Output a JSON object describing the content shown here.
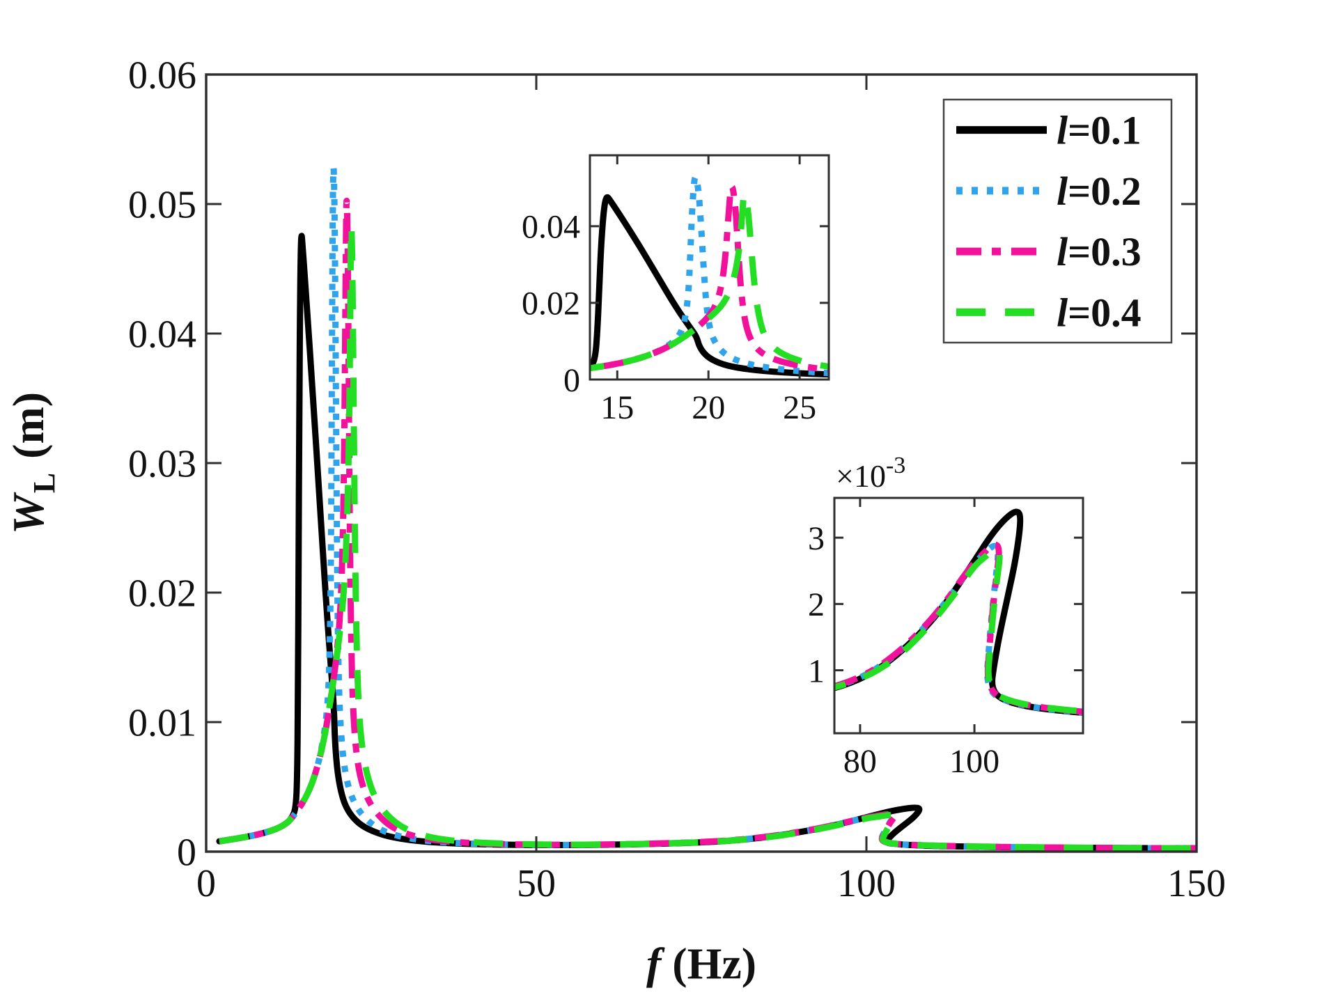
{
  "figure": {
    "background": "#ffffff",
    "axes_color": "#2f2f2f"
  },
  "labels": {
    "xlabel": {
      "sym": "f",
      "unit": " (Hz)"
    },
    "ylabel": {
      "sym": "W",
      "sub": "L",
      "unit": " (m)"
    }
  },
  "chart_data": {
    "type": "line",
    "title": "",
    "xlabel": "f (Hz)",
    "ylabel": "W_L (m)",
    "xlim": [
      0,
      150
    ],
    "ylim": [
      0,
      0.06
    ],
    "grid": false,
    "legend_position": "top-right",
    "x_ticks": [
      {
        "v": 0,
        "label": "0"
      },
      {
        "v": 50,
        "label": "50"
      },
      {
        "v": 100,
        "label": "100"
      },
      {
        "v": 150,
        "label": "150"
      }
    ],
    "y_ticks": [
      {
        "v": 0,
        "label": "0"
      },
      {
        "v": 0.01,
        "label": "0.01"
      },
      {
        "v": 0.02,
        "label": "0.02"
      },
      {
        "v": 0.03,
        "label": "0.03"
      },
      {
        "v": 0.04,
        "label": "0.04"
      },
      {
        "v": 0.05,
        "label": "0.05"
      },
      {
        "v": 0.06,
        "label": "0.06"
      }
    ],
    "series": [
      {
        "name": "l=0.1",
        "color": "#000000",
        "linestyle": "solid",
        "peak1": {
          "f": 14.4,
          "W": 0.048
        },
        "peak2": {
          "f": 107.5,
          "W": 0.0034
        },
        "points": [
          [
            2,
            0.0008
          ],
          [
            6,
            0.0011
          ],
          [
            10,
            0.0016
          ],
          [
            12,
            0.0021
          ],
          [
            13,
            0.0026
          ],
          [
            13.6,
            0.0034
          ],
          [
            13.8,
            0.006
          ],
          [
            13.9,
            0.012
          ],
          [
            14.0,
            0.022
          ],
          [
            14.1,
            0.034
          ],
          [
            14.25,
            0.044
          ],
          [
            14.4,
            0.048
          ],
          [
            14.6,
            0.0468
          ],
          [
            15.2,
            0.0425
          ],
          [
            16.2,
            0.035
          ],
          [
            17.2,
            0.027
          ],
          [
            18.2,
            0.019
          ],
          [
            19.0,
            0.0135
          ],
          [
            19.35,
            0.0112
          ],
          [
            19.5,
            0.0085
          ],
          [
            19.9,
            0.006
          ],
          [
            20.6,
            0.0042
          ],
          [
            21.5,
            0.0031
          ],
          [
            23,
            0.0022
          ],
          [
            25,
            0.0016
          ],
          [
            28,
            0.0011
          ],
          [
            33,
            0.00075
          ],
          [
            40,
            0.00058
          ],
          [
            50,
            0.0005
          ],
          [
            60,
            0.00052
          ],
          [
            70,
            0.00062
          ],
          [
            78,
            0.00078
          ],
          [
            84,
            0.00105
          ],
          [
            90,
            0.0015
          ],
          [
            95,
            0.002
          ],
          [
            100,
            0.00265
          ],
          [
            103,
            0.00305
          ],
          [
            105.5,
            0.0033
          ],
          [
            107.5,
            0.00342
          ],
          [
            108.2,
            0.0033
          ],
          [
            107.3,
            0.0027
          ],
          [
            105.8,
            0.0021
          ],
          [
            104.3,
            0.0015
          ],
          [
            103.3,
            0.001
          ],
          [
            103.0,
            0.00078
          ],
          [
            103.8,
            0.00062
          ],
          [
            106,
            0.00052
          ],
          [
            110,
            0.00044
          ],
          [
            116,
            0.00038
          ],
          [
            125,
            0.00032
          ],
          [
            137,
            0.00028
          ],
          [
            150,
            0.00026
          ]
        ]
      },
      {
        "name": "l=0.2",
        "color": "#2FA3EC",
        "linestyle": "dotted",
        "peak1": {
          "f": 19.25,
          "W": 0.0543
        },
        "peak2": {
          "f": 103.5,
          "W": 0.0029
        },
        "points": [
          [
            2,
            0.0008
          ],
          [
            6,
            0.0011
          ],
          [
            10,
            0.0016
          ],
          [
            12,
            0.0021
          ],
          [
            13,
            0.0026
          ],
          [
            14,
            0.0033
          ],
          [
            15,
            0.0041
          ],
          [
            16,
            0.0052
          ],
          [
            17,
            0.0068
          ],
          [
            17.8,
            0.0088
          ],
          [
            18.4,
            0.0112
          ],
          [
            18.7,
            0.015
          ],
          [
            18.9,
            0.022
          ],
          [
            19.0,
            0.032
          ],
          [
            19.1,
            0.044
          ],
          [
            19.25,
            0.0543
          ],
          [
            19.45,
            0.05
          ],
          [
            19.6,
            0.04
          ],
          [
            19.75,
            0.028
          ],
          [
            19.9,
            0.0185
          ],
          [
            20.1,
            0.0125
          ],
          [
            20.45,
            0.0088
          ],
          [
            21,
            0.0062
          ],
          [
            21.8,
            0.0045
          ],
          [
            23,
            0.0032
          ],
          [
            25,
            0.0021
          ],
          [
            28,
            0.0013
          ],
          [
            33,
            0.00082
          ],
          [
            40,
            0.0006
          ],
          [
            50,
            0.00051
          ],
          [
            60,
            0.00053
          ],
          [
            70,
            0.00063
          ],
          [
            78,
            0.0008
          ],
          [
            84,
            0.00107
          ],
          [
            90,
            0.00152
          ],
          [
            95,
            0.00202
          ],
          [
            99,
            0.00252
          ],
          [
            101.5,
            0.00275
          ],
          [
            103.5,
            0.0029
          ],
          [
            104.3,
            0.00282
          ],
          [
            103.6,
            0.0023
          ],
          [
            102.9,
            0.00172
          ],
          [
            102.4,
            0.00118
          ],
          [
            102.15,
            0.00088
          ],
          [
            103,
            0.00066
          ],
          [
            105,
            0.00055
          ],
          [
            109,
            0.00046
          ],
          [
            115,
            0.00039
          ],
          [
            124,
            0.00033
          ],
          [
            136,
            0.00028
          ],
          [
            150,
            0.00026
          ]
        ]
      },
      {
        "name": "l=0.3",
        "color": "#F2119B",
        "linestyle": "dashdot",
        "peak1": {
          "f": 21.25,
          "W": 0.0518
        },
        "peak2": {
          "f": 103.5,
          "W": 0.00292
        },
        "points": [
          [
            2,
            0.0008
          ],
          [
            6,
            0.0011
          ],
          [
            10,
            0.0016
          ],
          [
            12,
            0.0021
          ],
          [
            13,
            0.0026
          ],
          [
            14,
            0.0033
          ],
          [
            15,
            0.0041
          ],
          [
            16,
            0.0052
          ],
          [
            17,
            0.0068
          ],
          [
            18,
            0.009
          ],
          [
            19,
            0.0122
          ],
          [
            19.8,
            0.0152
          ],
          [
            20.4,
            0.019
          ],
          [
            20.75,
            0.025
          ],
          [
            20.95,
            0.033
          ],
          [
            21.1,
            0.043
          ],
          [
            21.25,
            0.0518
          ],
          [
            21.45,
            0.047
          ],
          [
            21.6,
            0.036
          ],
          [
            21.75,
            0.025
          ],
          [
            21.95,
            0.0165
          ],
          [
            22.2,
            0.0115
          ],
          [
            22.6,
            0.0082
          ],
          [
            23.2,
            0.006
          ],
          [
            24.2,
            0.0043
          ],
          [
            25.8,
            0.0029
          ],
          [
            28.5,
            0.0017
          ],
          [
            33,
            0.00095
          ],
          [
            40,
            0.00064
          ],
          [
            50,
            0.00052
          ],
          [
            60,
            0.00054
          ],
          [
            70,
            0.00064
          ],
          [
            78,
            0.00081
          ],
          [
            84,
            0.00108
          ],
          [
            90,
            0.00153
          ],
          [
            95,
            0.00203
          ],
          [
            99,
            0.00253
          ],
          [
            101.5,
            0.00276
          ],
          [
            103.5,
            0.00292
          ],
          [
            104.5,
            0.00284
          ],
          [
            103.7,
            0.00232
          ],
          [
            103.0,
            0.00174
          ],
          [
            102.5,
            0.0012
          ],
          [
            102.25,
            0.0009
          ],
          [
            103.1,
            0.00067
          ],
          [
            105.2,
            0.00056
          ],
          [
            109.2,
            0.00047
          ],
          [
            115.5,
            0.0004
          ],
          [
            125,
            0.00033
          ],
          [
            137,
            0.00028
          ],
          [
            150,
            0.00026
          ]
        ]
      },
      {
        "name": "l=0.4",
        "color": "#24DE24",
        "linestyle": "dashed",
        "peak1": {
          "f": 21.95,
          "W": 0.0495
        },
        "peak2": {
          "f": 103.8,
          "W": 0.00286
        },
        "points": [
          [
            2,
            0.0008
          ],
          [
            6,
            0.0011
          ],
          [
            10,
            0.0016
          ],
          [
            12,
            0.0021
          ],
          [
            13,
            0.0026
          ],
          [
            14,
            0.0033
          ],
          [
            15,
            0.0041
          ],
          [
            16,
            0.0052
          ],
          [
            17,
            0.0068
          ],
          [
            18,
            0.009
          ],
          [
            19,
            0.0122
          ],
          [
            20,
            0.0158
          ],
          [
            20.9,
            0.02
          ],
          [
            21.4,
            0.026
          ],
          [
            21.7,
            0.034
          ],
          [
            21.85,
            0.043
          ],
          [
            21.95,
            0.0495
          ],
          [
            22.15,
            0.0455
          ],
          [
            22.35,
            0.034
          ],
          [
            22.55,
            0.023
          ],
          [
            22.8,
            0.0155
          ],
          [
            23.1,
            0.011
          ],
          [
            23.6,
            0.008
          ],
          [
            24.4,
            0.0058
          ],
          [
            25.6,
            0.0041
          ],
          [
            27.5,
            0.0027
          ],
          [
            30.5,
            0.0016
          ],
          [
            35,
            0.00095
          ],
          [
            42,
            0.00065
          ],
          [
            52,
            0.00053
          ],
          [
            62,
            0.00055
          ],
          [
            72,
            0.00066
          ],
          [
            80,
            0.00085
          ],
          [
            86,
            0.00115
          ],
          [
            92,
            0.00165
          ],
          [
            97,
            0.0022
          ],
          [
            100,
            0.00258
          ],
          [
            102,
            0.00272
          ],
          [
            103.8,
            0.00286
          ],
          [
            104.6,
            0.00278
          ],
          [
            103.8,
            0.00228
          ],
          [
            103.1,
            0.0017
          ],
          [
            102.6,
            0.00118
          ],
          [
            102.35,
            0.0009
          ],
          [
            103.2,
            0.00067
          ],
          [
            105.4,
            0.00056
          ],
          [
            109.5,
            0.00047
          ],
          [
            116,
            0.0004
          ],
          [
            126,
            0.00033
          ],
          [
            138,
            0.00028
          ],
          [
            150,
            0.00025
          ]
        ]
      }
    ],
    "insets": [
      {
        "name": "inset-first-resonance",
        "xlim": [
          13.5,
          26.6
        ],
        "ylim": [
          0,
          0.0585
        ],
        "x_ticks": [
          {
            "v": 15,
            "label": "15"
          },
          {
            "v": 20,
            "label": "20"
          },
          {
            "v": 25,
            "label": "25"
          }
        ],
        "y_ticks": [
          {
            "v": 0,
            "label": "0"
          },
          {
            "v": 0.02,
            "label": "0.02"
          },
          {
            "v": 0.04,
            "label": "0.04"
          }
        ],
        "mult_base": "",
        "mult_exp": ""
      },
      {
        "name": "inset-second-resonance",
        "xlim": [
          75.5,
          119
        ],
        "ylim": [
          5e-05,
          0.0036
        ],
        "x_ticks": [
          {
            "v": 80,
            "label": "80"
          },
          {
            "v": 100,
            "label": "100"
          }
        ],
        "y_ticks": [
          {
            "v": 0.001,
            "label": "1"
          },
          {
            "v": 0.002,
            "label": "2"
          },
          {
            "v": 0.003,
            "label": "3"
          }
        ],
        "mult_base": "×10",
        "mult_exp": "-3"
      }
    ]
  }
}
